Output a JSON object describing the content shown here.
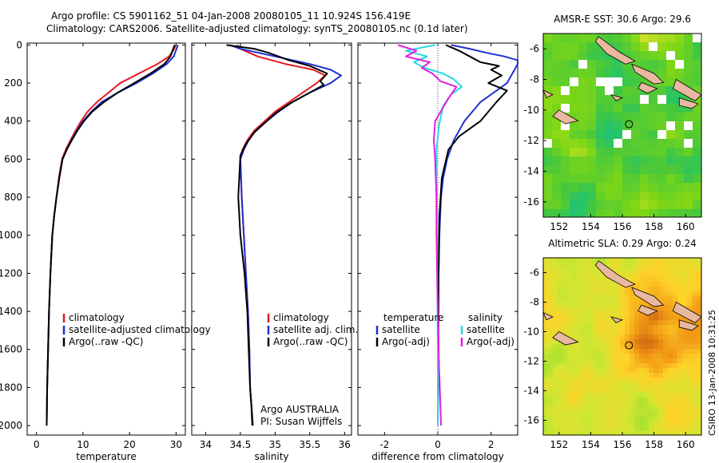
{
  "header": {
    "line1": "Argo profile: CS 5901162_51 04-Jan-2008 20080105_11 10.924S 156.419E",
    "line2": "Climatology: CARS2006. Satellite-adjusted climatology: synTS_20080105.nc (0.1d later)"
  },
  "stamp": "CSIRO 13-Jan-2008 10:31:25",
  "colors": {
    "climatology": "#e41a1c",
    "satellite": "#1f2fd0",
    "argo": "#000000",
    "sat_salinity": "#29d8e8",
    "argo_salinity": "#e020e0"
  },
  "chart_data": [
    {
      "type": "line",
      "panel": "temperature",
      "xlabel": "temperature",
      "ylabel": "",
      "xlim": [
        -2,
        32
      ],
      "ylim": [
        2050,
        0
      ],
      "xticks": [
        "0",
        "10",
        "20",
        "30"
      ],
      "yticks": [
        "0",
        "200",
        "400",
        "600",
        "800",
        "1000",
        "1200",
        "1400",
        "1600",
        "1800",
        "2000"
      ],
      "legend": [
        "climatology",
        "satellite-adjusted climatology",
        "Argo(..raw -QC)"
      ],
      "legend_loc": "lower-right",
      "series": [
        {
          "name": "climatology",
          "color": "climatology",
          "x": [
            29.9,
            29.6,
            28.5,
            26.0,
            22.0,
            18.0,
            15.5,
            13.0,
            11.0,
            9.6,
            8.4,
            7.3,
            6.3,
            5.5,
            4.8,
            4.3,
            3.8,
            3.4,
            3.0,
            2.7,
            2.5,
            2.3,
            2.2
          ],
          "y": [
            0,
            20,
            60,
            100,
            150,
            200,
            250,
            300,
            350,
            400,
            450,
            500,
            550,
            600,
            700,
            800,
            900,
            1000,
            1200,
            1400,
            1600,
            1800,
            2000
          ]
        },
        {
          "name": "satellite-adjusted climatology",
          "color": "satellite",
          "x": [
            30.4,
            30.1,
            29.5,
            28.0,
            25.0,
            21.5,
            17.5,
            14.0,
            11.8,
            10.0,
            8.7,
            7.5,
            6.5,
            5.6,
            4.9,
            4.3,
            3.8,
            3.4,
            3.0,
            2.7,
            2.5,
            2.3,
            2.2
          ],
          "y": [
            0,
            20,
            60,
            100,
            150,
            200,
            250,
            300,
            350,
            400,
            450,
            500,
            550,
            600,
            700,
            800,
            900,
            1000,
            1200,
            1400,
            1600,
            1800,
            2000
          ]
        },
        {
          "name": "Argo(..raw -QC)",
          "color": "argo",
          "x": [
            29.7,
            29.4,
            28.8,
            27.5,
            24.5,
            21.0,
            17.5,
            14.5,
            12.0,
            10.2,
            8.8,
            7.6,
            6.5,
            5.6,
            4.9,
            4.3,
            3.8,
            3.4,
            3.0,
            2.7,
            2.5,
            2.3,
            2.2
          ],
          "y": [
            0,
            20,
            60,
            100,
            150,
            200,
            250,
            300,
            350,
            400,
            450,
            500,
            550,
            600,
            700,
            800,
            900,
            1000,
            1200,
            1400,
            1600,
            1800,
            2000
          ]
        }
      ]
    },
    {
      "type": "line",
      "panel": "salinity",
      "xlabel": "salinity",
      "xlim": [
        33.8,
        36.1
      ],
      "ylim": [
        2050,
        0
      ],
      "xticks": [
        "34",
        "34.5",
        "35",
        "35.5",
        "36"
      ],
      "legend": [
        "climatology",
        "satellite adj. clim.",
        "Argo(..raw -QC)"
      ],
      "legend_loc": "center-right",
      "annotation": [
        "Argo AUSTRALIA",
        "PI: Susan Wijffels"
      ],
      "series": [
        {
          "name": "climatology",
          "color": "climatology",
          "x": [
            34.45,
            34.5,
            34.75,
            35.15,
            35.55,
            35.72,
            35.6,
            35.4,
            35.2,
            35.0,
            34.85,
            34.7,
            34.6,
            34.53,
            34.5,
            34.52,
            34.55,
            34.58,
            34.61,
            34.63,
            34.64,
            34.66,
            34.67
          ],
          "y": [
            0,
            20,
            60,
            100,
            130,
            160,
            200,
            250,
            300,
            350,
            400,
            450,
            500,
            550,
            600,
            800,
            1000,
            1200,
            1400,
            1600,
            1800,
            1900,
            2000
          ]
        },
        {
          "name": "satellite adj. clim.",
          "color": "satellite",
          "x": [
            34.35,
            34.5,
            35.0,
            35.5,
            35.8,
            35.95,
            35.8,
            35.5,
            35.25,
            35.05,
            34.88,
            34.72,
            34.62,
            34.55,
            34.5,
            34.52,
            34.55,
            34.58,
            34.61,
            34.63,
            34.64,
            34.66,
            34.67
          ],
          "y": [
            0,
            20,
            60,
            100,
            130,
            160,
            200,
            250,
            300,
            350,
            400,
            450,
            500,
            550,
            600,
            800,
            1000,
            1200,
            1400,
            1600,
            1800,
            1900,
            2000
          ]
        },
        {
          "name": "Argo(..raw -QC)",
          "color": "argo",
          "x": [
            34.3,
            34.7,
            34.9,
            35.05,
            35.2,
            35.5,
            35.75,
            35.65,
            35.7,
            35.45,
            35.2,
            35.0,
            34.85,
            34.7,
            34.58,
            34.5,
            34.47,
            34.5,
            34.56,
            34.6,
            34.62,
            34.64,
            34.66,
            34.68
          ],
          "y": [
            0,
            20,
            40,
            60,
            80,
            110,
            150,
            190,
            210,
            260,
            310,
            360,
            410,
            460,
            520,
            580,
            800,
            1000,
            1200,
            1400,
            1600,
            1800,
            1900,
            2000
          ]
        }
      ]
    },
    {
      "type": "line",
      "panel": "difference",
      "xlabel": "difference from climatology",
      "xlim": [
        -3.0,
        3.0
      ],
      "ylim": [
        2050,
        0
      ],
      "xticks": [
        "-2",
        "0",
        "2"
      ],
      "legend_groups": [
        {
          "title": "temperature",
          "items": [
            "satellite",
            "Argo(-adj)"
          ]
        },
        {
          "title": "salinity",
          "items": [
            "satellite",
            "Argo(-adj)"
          ]
        }
      ],
      "legend_loc": "center",
      "zero_line": true,
      "series": [
        {
          "name": "temperature satellite",
          "color": "satellite",
          "x": [
            0.5,
            1.2,
            1.8,
            2.5,
            3.0,
            3.0,
            2.6,
            1.6,
            1.0,
            0.6,
            0.35,
            0.2,
            0.12,
            0.06,
            0.03,
            0.01,
            0.0,
            0.0
          ],
          "y": [
            0,
            20,
            40,
            60,
            80,
            100,
            200,
            300,
            400,
            500,
            600,
            700,
            800,
            1000,
            1200,
            1400,
            1700,
            2000
          ]
        },
        {
          "name": "temperature Argo(-adj)",
          "color": "argo",
          "x": [
            0.3,
            0.8,
            1.2,
            1.6,
            2.3,
            2.0,
            2.4,
            1.9,
            2.6,
            2.2,
            1.6,
            0.8,
            0.4,
            0.15,
            0.06,
            0.03,
            0.02,
            0.0
          ],
          "y": [
            0,
            30,
            60,
            90,
            110,
            130,
            160,
            200,
            240,
            300,
            400,
            480,
            550,
            700,
            900,
            1200,
            1600,
            2000
          ]
        },
        {
          "name": "salinity satellite",
          "color": "sat_salinity",
          "x": [
            -0.1,
            -1.2,
            -0.4,
            -0.9,
            -0.5,
            0.2,
            0.6,
            0.9,
            0.5,
            0.2,
            0.05,
            -0.05,
            -0.05,
            -0.03,
            -0.02,
            0.0,
            0.0
          ],
          "y": [
            0,
            30,
            60,
            90,
            120,
            150,
            180,
            220,
            260,
            320,
            420,
            550,
            700,
            900,
            1200,
            1600,
            2000
          ]
        },
        {
          "name": "salinity Argo(-adj)",
          "color": "argo_salinity",
          "x": [
            -1.5,
            -0.8,
            -1.2,
            -0.3,
            -0.6,
            -0.2,
            0.1,
            0.7,
            0.4,
            -0.1,
            -0.15,
            -0.1,
            -0.05,
            -0.05,
            0.0,
            0.05,
            0.1,
            0.12
          ],
          "y": [
            0,
            30,
            60,
            90,
            120,
            150,
            190,
            220,
            280,
            400,
            500,
            600,
            800,
            1000,
            1400,
            1700,
            1900,
            2000
          ]
        }
      ]
    },
    {
      "type": "heatmap",
      "panel": "sst_map",
      "title": "AMSR-E SST: 30.6 Argo: 29.6",
      "xlim": [
        151,
        161
      ],
      "ylim": [
        -17,
        -5
      ],
      "xticks": [
        "152",
        "154",
        "156",
        "158",
        "160"
      ],
      "yticks": [
        "-6",
        "-8",
        "-10",
        "-12",
        "-14",
        "-16"
      ],
      "marker": {
        "lon": 156.419,
        "lat": -10.924
      }
    },
    {
      "type": "heatmap",
      "panel": "sla_map",
      "title": "Altimetric SLA: 0.29 Argo: 0.24",
      "xlim": [
        151,
        161
      ],
      "ylim": [
        -17,
        -5
      ],
      "xticks": [
        "152",
        "154",
        "156",
        "158",
        "160"
      ],
      "yticks": [
        "-6",
        "-8",
        "-10",
        "-12",
        "-14",
        "-16"
      ],
      "marker": {
        "lon": 156.419,
        "lat": -10.924
      }
    }
  ]
}
